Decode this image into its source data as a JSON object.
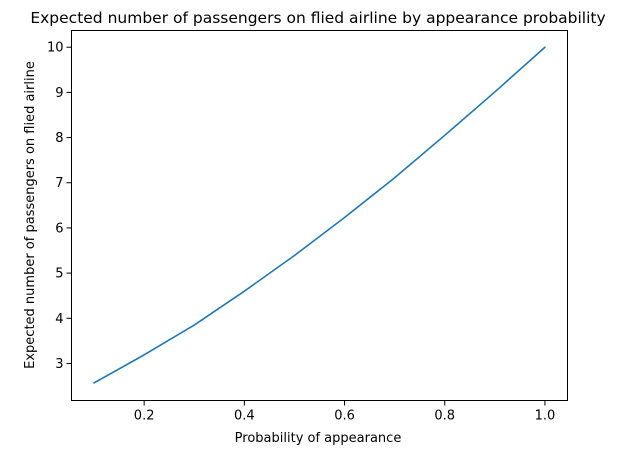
{
  "chart_data": {
    "type": "line",
    "title": "Expected number of passengers on flied airline by appearance probability",
    "xlabel": "Probability of appearance",
    "ylabel": "Expected number of passengers on flied airline",
    "xlim": [
      0.055,
      1.045
    ],
    "ylim": [
      2.18,
      10.37
    ],
    "xticks": [
      0.2,
      0.4,
      0.6,
      0.8,
      1.0
    ],
    "xtick_labels": [
      "0.2",
      "0.4",
      "0.6",
      "0.8",
      "1.0"
    ],
    "yticks": [
      3,
      4,
      5,
      6,
      7,
      8,
      9,
      10
    ],
    "ytick_labels": [
      "3",
      "4",
      "5",
      "6",
      "7",
      "8",
      "9",
      "10"
    ],
    "grid": false,
    "series": [
      {
        "color": "#1f77b4",
        "x": [
          0.1,
          0.2,
          0.3,
          0.4,
          0.5,
          0.6,
          0.7,
          0.8,
          0.9,
          1.0
        ],
        "y": [
          2.57,
          3.19,
          3.85,
          4.6,
          5.39,
          6.23,
          7.11,
          8.05,
          9.01,
          10.0
        ]
      }
    ]
  }
}
